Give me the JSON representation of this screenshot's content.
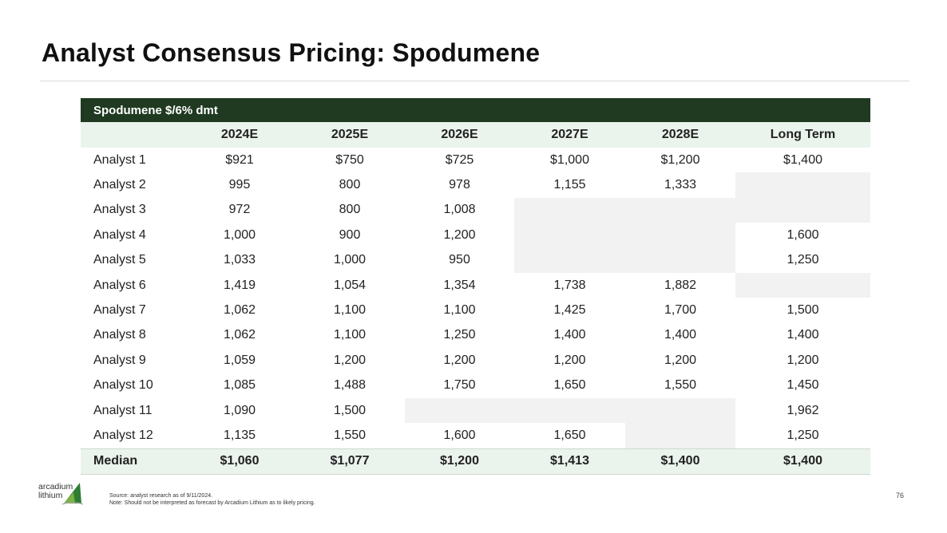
{
  "page": {
    "title": "Analyst Consensus Pricing: Spodumene",
    "page_number": "76"
  },
  "table": {
    "caption": "Spodumene $/6% dmt",
    "columns": [
      "",
      "2024E",
      "2025E",
      "2026E",
      "2027E",
      "2028E",
      "Long Term"
    ],
    "rows": [
      {
        "label": "Analyst 1",
        "values": [
          "$921",
          "$750",
          "$725",
          "$1,000",
          "$1,200",
          "$1,400"
        ]
      },
      {
        "label": "Analyst 2",
        "values": [
          "995",
          "800",
          "978",
          "1,155",
          "1,333",
          ""
        ]
      },
      {
        "label": "Analyst 3",
        "values": [
          "972",
          "800",
          "1,008",
          "",
          "",
          ""
        ]
      },
      {
        "label": "Analyst 4",
        "values": [
          "1,000",
          "900",
          "1,200",
          "",
          "",
          "1,600"
        ]
      },
      {
        "label": "Analyst 5",
        "values": [
          "1,033",
          "1,000",
          "950",
          "",
          "",
          "1,250"
        ]
      },
      {
        "label": "Analyst 6",
        "values": [
          "1,419",
          "1,054",
          "1,354",
          "1,738",
          "1,882",
          ""
        ]
      },
      {
        "label": "Analyst 7",
        "values": [
          "1,062",
          "1,100",
          "1,100",
          "1,425",
          "1,700",
          "1,500"
        ]
      },
      {
        "label": "Analyst 8",
        "values": [
          "1,062",
          "1,100",
          "1,250",
          "1,400",
          "1,400",
          "1,400"
        ]
      },
      {
        "label": "Analyst 9",
        "values": [
          "1,059",
          "1,200",
          "1,200",
          "1,200",
          "1,200",
          "1,200"
        ]
      },
      {
        "label": "Analyst 10",
        "values": [
          "1,085",
          "1,488",
          "1,750",
          "1,650",
          "1,550",
          "1,450"
        ]
      },
      {
        "label": "Analyst 11",
        "values": [
          "1,090",
          "1,500",
          "",
          "",
          "",
          "1,962"
        ]
      },
      {
        "label": "Analyst 12",
        "values": [
          "1,135",
          "1,550",
          "1,600",
          "1,650",
          "",
          "1,250"
        ]
      }
    ],
    "median": {
      "label": "Median",
      "values": [
        "$1,060",
        "$1,077",
        "$1,200",
        "$1,413",
        "$1,400",
        "$1,400"
      ]
    }
  },
  "footer": {
    "logo_line1": "arcadium",
    "logo_line2": "lithium",
    "source": "Source: analyst research as of 9/11/2024.",
    "note": "Note: Should not be interpreted as forecast by Arcadium Lithium as to likely pricing."
  },
  "colors": {
    "header_dark": "#1f3a21",
    "header_light": "#eaf3ec",
    "blank_cell": "#f2f2f2",
    "logo_green": "#2e7d32"
  }
}
